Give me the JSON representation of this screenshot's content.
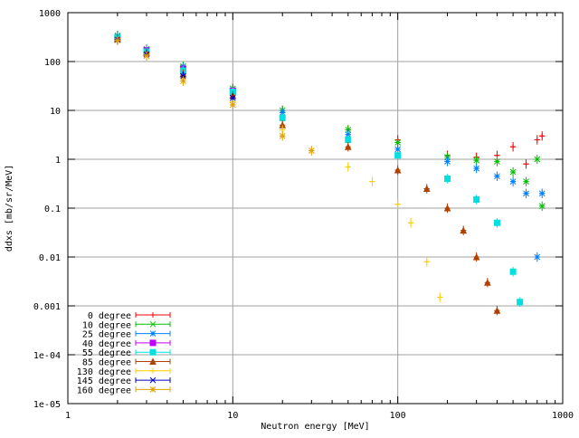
{
  "chart_data": {
    "type": "scatter",
    "title": "",
    "xlabel": "Neutron energy [MeV]",
    "ylabel": "ddxs [mb/sr/MeV]",
    "xscale": "log",
    "yscale": "log",
    "xlim": [
      1,
      1000
    ],
    "ylim": [
      1e-05,
      1000
    ],
    "grid": true,
    "legend_position": "bottom-left",
    "x_ticks": [
      {
        "v": 1,
        "label": "1"
      },
      {
        "v": 10,
        "label": "10"
      },
      {
        "v": 100,
        "label": "100"
      },
      {
        "v": 1000,
        "label": "1000"
      }
    ],
    "y_ticks": [
      {
        "v": 1e-05,
        "label": "1e-05"
      },
      {
        "v": 0.0001,
        "label": "1e-04"
      },
      {
        "v": 0.001,
        "label": "0.001"
      },
      {
        "v": 0.01,
        "label": "0.01"
      },
      {
        "v": 0.1,
        "label": "0.1"
      },
      {
        "v": 1,
        "label": "1"
      },
      {
        "v": 10,
        "label": "10"
      },
      {
        "v": 100,
        "label": "100"
      },
      {
        "v": 1000,
        "label": "1000"
      }
    ],
    "series": [
      {
        "name": "0 degree",
        "color": "#ff0000",
        "marker": "plus",
        "x": [
          2,
          3,
          5,
          10,
          20,
          50,
          100,
          200,
          300,
          400,
          500,
          600,
          700,
          750
        ],
        "y": [
          340,
          180,
          80,
          28,
          10,
          4,
          2.5,
          1.2,
          1.1,
          1.2,
          1.8,
          0.8,
          2.5,
          3
        ]
      },
      {
        "name": "10 degree",
        "color": "#00c000",
        "marker": "x",
        "x": [
          2,
          3,
          5,
          10,
          20,
          50,
          100,
          200,
          300,
          400,
          500,
          600,
          700,
          750
        ],
        "y": [
          340,
          180,
          80,
          28,
          10,
          4,
          2.2,
          1.1,
          0.95,
          0.9,
          0.55,
          0.35,
          1,
          0.11
        ]
      },
      {
        "name": "25 degree",
        "color": "#0080ff",
        "marker": "star",
        "x": [
          2,
          3,
          5,
          10,
          20,
          50,
          100,
          200,
          300,
          400,
          500,
          600,
          700,
          750
        ],
        "y": [
          330,
          175,
          75,
          26,
          9,
          3.2,
          1.6,
          0.9,
          0.65,
          0.45,
          0.35,
          0.2,
          0.01,
          0.2
        ]
      },
      {
        "name": "40 degree",
        "color": "#c000ff",
        "marker": "box",
        "x": [
          2,
          3,
          5,
          10
        ],
        "y": [
          300,
          170,
          70,
          25
        ]
      },
      {
        "name": "55 degree",
        "color": "#00e0e0",
        "marker": "box",
        "x": [
          2,
          3,
          5,
          10,
          20,
          50,
          100,
          200,
          300,
          400,
          500,
          550
        ],
        "y": [
          310,
          160,
          65,
          24,
          7,
          2.5,
          1.2,
          0.4,
          0.15,
          0.05,
          0.005,
          0.0012
        ]
      },
      {
        "name": "85 degree",
        "color": "#b04000",
        "marker": "triangle",
        "x": [
          2,
          3,
          5,
          10,
          20,
          50,
          100,
          150,
          200,
          250,
          300,
          350,
          400
        ],
        "y": [
          290,
          150,
          55,
          20,
          5,
          1.8,
          0.6,
          0.25,
          0.1,
          0.035,
          0.01,
          0.003,
          0.0008
        ]
      },
      {
        "name": "130 degree",
        "color": "#ffcc00",
        "marker": "plus",
        "x": [
          2,
          3,
          5,
          10,
          20,
          50,
          70,
          100,
          120,
          150,
          180
        ],
        "y": [
          280,
          140,
          45,
          15,
          4,
          0.7,
          0.35,
          0.12,
          0.05,
          0.008,
          0.0015
        ]
      },
      {
        "name": "145 degree",
        "color": "#0000c0",
        "marker": "x",
        "x": [
          2,
          3,
          5,
          10
        ],
        "y": [
          280,
          140,
          50,
          18
        ]
      },
      {
        "name": "160 degree",
        "color": "#e0a000",
        "marker": "star",
        "x": [
          2,
          3,
          5,
          10,
          20,
          30
        ],
        "y": [
          270,
          130,
          40,
          13,
          3,
          1.5
        ]
      }
    ]
  }
}
